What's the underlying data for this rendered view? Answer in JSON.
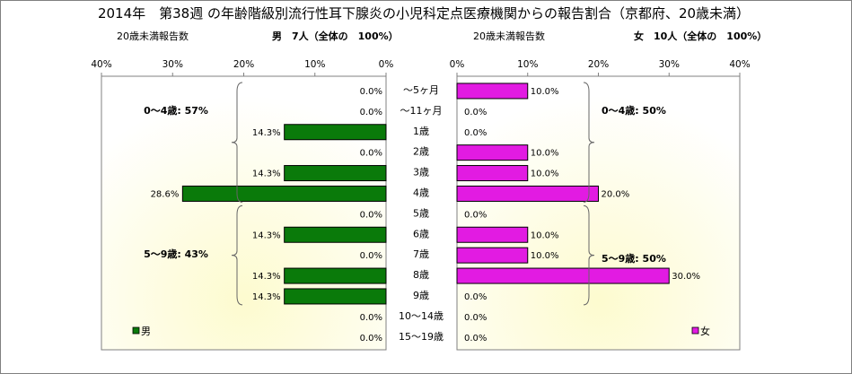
{
  "chart_data": {
    "type": "bar",
    "orientation": "horizontal",
    "title": "2014年　第38週 の年齢階級別流行性耳下腺炎の小児科定点医療機関からの報告割合（京都府、20歳未満）",
    "categories": [
      "～5ヶ月",
      "～11ヶ月",
      "1歳",
      "2歳",
      "3歳",
      "4歳",
      "5歳",
      "6歳",
      "7歳",
      "8歳",
      "9歳",
      "10～14歳",
      "15～19歳"
    ],
    "xlim": [
      0,
      40
    ],
    "ticks": [
      "40%",
      "30%",
      "20%",
      "10%",
      "0%",
      "0%",
      "10%",
      "20%",
      "30%",
      "40%"
    ],
    "grid": false,
    "panels": [
      {
        "side": "left",
        "header_left": "20歳未満報告数",
        "header_right": "男　7人（全体の　100%）",
        "legend": "男",
        "legend_position": "bottom-left",
        "color": "#0a7a0a",
        "values": [
          0.0,
          0.0,
          14.3,
          0.0,
          14.3,
          28.6,
          0.0,
          14.3,
          0.0,
          14.3,
          14.3,
          0.0,
          0.0
        ],
        "labels": [
          "0.0%",
          "0.0%",
          "14.3%",
          "0.0%",
          "14.3%",
          "28.6%",
          "0.0%",
          "14.3%",
          "0.0%",
          "14.3%",
          "14.3%",
          "0.0%",
          "0.0%"
        ],
        "groups": [
          {
            "label": "0～4歳: 57%",
            "from": 0,
            "to": 5
          },
          {
            "label": "5～9歳: 43%",
            "from": 6,
            "to": 10
          }
        ]
      },
      {
        "side": "right",
        "header_left": "20歳未満報告数",
        "header_right": "女　10人（全体の　100%）",
        "legend": "女",
        "legend_position": "bottom-right",
        "color": "#e21be2",
        "values": [
          10.0,
          0.0,
          0.0,
          10.0,
          10.0,
          20.0,
          0.0,
          10.0,
          10.0,
          30.0,
          0.0,
          0.0,
          0.0
        ],
        "labels": [
          "10.0%",
          "0.0%",
          "0.0%",
          "10.0%",
          "10.0%",
          "20.0%",
          "0.0%",
          "10.0%",
          "10.0%",
          "30.0%",
          "0.0%",
          "0.0%",
          "0.0%"
        ],
        "groups": [
          {
            "label": "0～4歳: 50%",
            "from": 0,
            "to": 5
          },
          {
            "label": "5～9歳: 50%",
            "from": 6,
            "to": 10
          }
        ]
      }
    ]
  }
}
